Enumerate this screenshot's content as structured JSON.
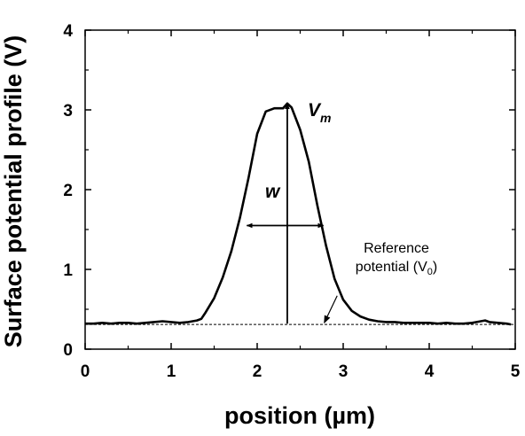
{
  "chart_data": {
    "type": "line",
    "xlabel": "position (µm)",
    "ylabel": "Surface potential profile (V)",
    "xlim": [
      0,
      5
    ],
    "ylim": [
      0,
      4
    ],
    "x_ticks": [
      0,
      1,
      2,
      3,
      4,
      5
    ],
    "y_ticks": [
      0,
      1,
      2,
      3,
      4
    ],
    "grid": false,
    "series": [
      {
        "style": "solid",
        "x": [
          0.0,
          0.1,
          0.2,
          0.3,
          0.4,
          0.5,
          0.6,
          0.7,
          0.8,
          0.9,
          1.0,
          1.1,
          1.2,
          1.3,
          1.35,
          1.4,
          1.5,
          1.6,
          1.7,
          1.8,
          1.9,
          2.0,
          2.1,
          2.2,
          2.3,
          2.35,
          2.4,
          2.5,
          2.6,
          2.7,
          2.8,
          2.9,
          3.0,
          3.1,
          3.2,
          3.3,
          3.4,
          3.5,
          3.6,
          3.7,
          3.8,
          3.9,
          4.0,
          4.1,
          4.2,
          4.3,
          4.4,
          4.5,
          4.6,
          4.65,
          4.7,
          4.8,
          4.9,
          4.95
        ],
        "y": [
          0.32,
          0.32,
          0.33,
          0.32,
          0.33,
          0.33,
          0.32,
          0.33,
          0.34,
          0.35,
          0.34,
          0.33,
          0.34,
          0.36,
          0.38,
          0.46,
          0.64,
          0.9,
          1.23,
          1.65,
          2.15,
          2.7,
          2.98,
          3.02,
          3.02,
          3.08,
          3.03,
          2.75,
          2.35,
          1.8,
          1.3,
          0.88,
          0.62,
          0.48,
          0.41,
          0.37,
          0.35,
          0.34,
          0.34,
          0.33,
          0.33,
          0.33,
          0.33,
          0.32,
          0.33,
          0.32,
          0.32,
          0.33,
          0.35,
          0.36,
          0.34,
          0.33,
          0.32,
          0.31
        ]
      },
      {
        "style": "dashed",
        "x": [
          0,
          5
        ],
        "y": [
          0.31,
          0.31
        ]
      }
    ],
    "annotations": {
      "vm_label": "V",
      "vm_sub": "m",
      "w_label": "w",
      "ref_line1": "Reference",
      "ref_line2_pre": "potential (V",
      "ref_line2_sub": "0",
      "ref_line2_post": ")",
      "vm_arrow": {
        "x": 2.35,
        "y_from": 0.32,
        "y_to": 3.08
      },
      "w_arrow": {
        "y": 1.55,
        "x_from": 1.88,
        "x_to": 2.77
      },
      "ref_arrow": {
        "x_from": 2.93,
        "y_from": 0.67,
        "x_to": 2.78,
        "y_to": 0.33
      }
    }
  }
}
